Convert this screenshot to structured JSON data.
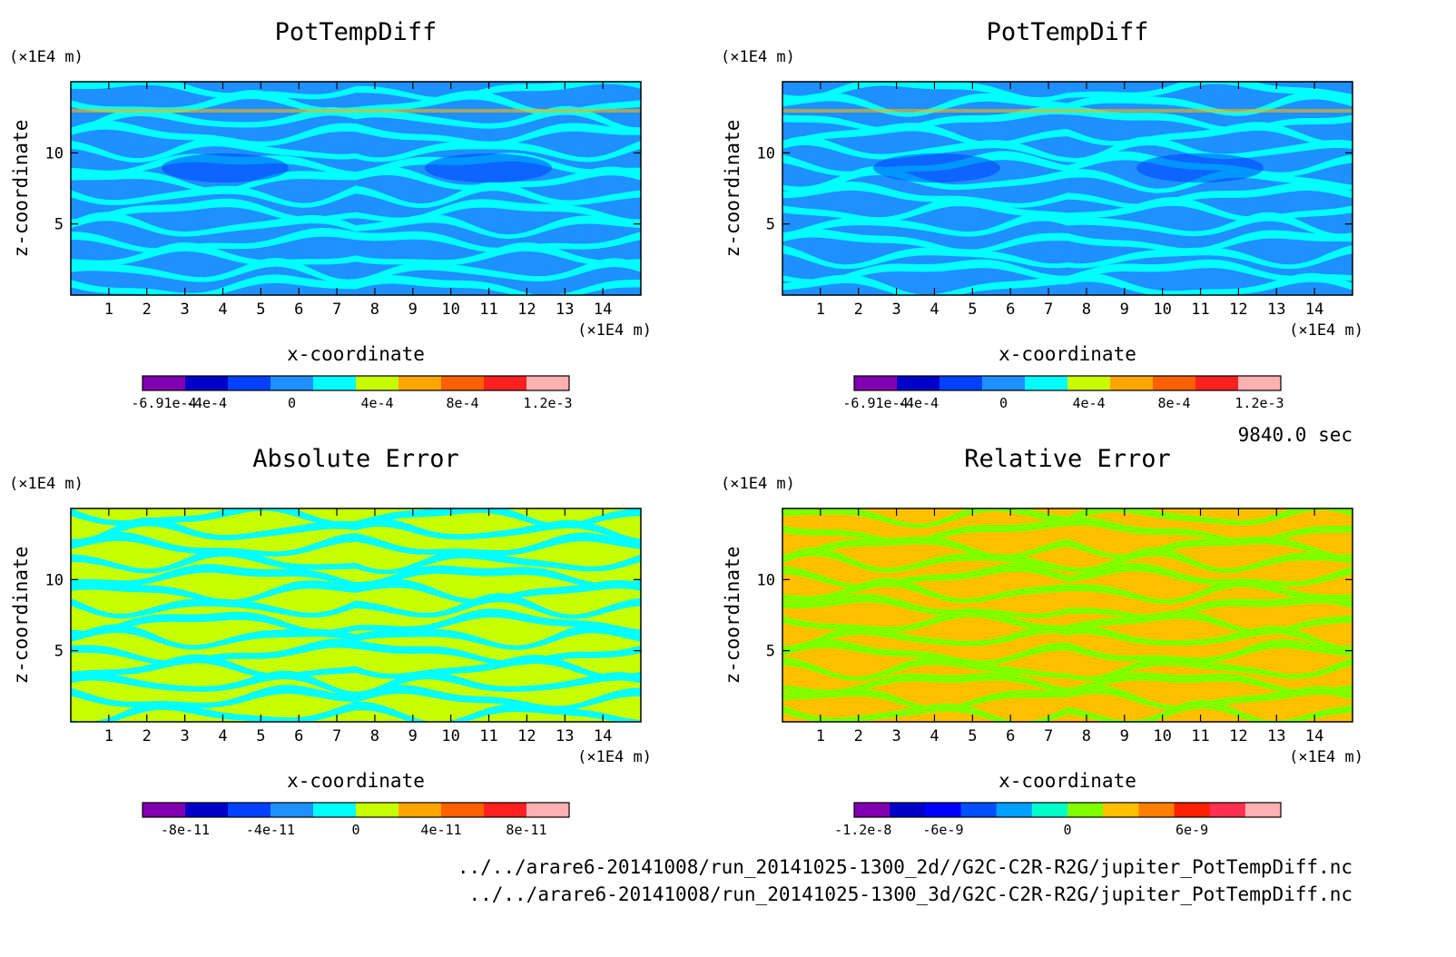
{
  "time_label": "9840.0 sec",
  "files": [
    "../../arare6-20141008/run_20141025-1300_2d//G2C-C2R-R2G/jupiter_PotTempDiff.nc",
    "../../arare6-20141008/run_20141025-1300_3d/G2C-C2R-R2G/jupiter_PotTempDiff.nc"
  ],
  "chart_data": [
    {
      "type": "heatmap",
      "title": "PotTempDiff",
      "xlabel": "x-coordinate",
      "ylabel": "z-coordinate",
      "x_unit": "(×1E4 m)",
      "y_unit": "(×1E4 m)",
      "xlim": [
        0,
        15
      ],
      "ylim": [
        0,
        15
      ],
      "x_ticks": [
        "1",
        "2",
        "3",
        "4",
        "5",
        "6",
        "7",
        "8",
        "9",
        "10",
        "11",
        "12",
        "13",
        "14"
      ],
      "y_ticks": [
        "5",
        "10"
      ],
      "colorbar": {
        "colors": [
          "#8000b0",
          "#0000c8",
          "#0040ff",
          "#1e90ff",
          "#00ffff",
          "#c8ff00",
          "#ffa500",
          "#ff6000",
          "#ff2020",
          "#ffb0b0"
        ],
        "label_positions": [
          0.5,
          1.5,
          3.5,
          5.5,
          7.5,
          9.5
        ],
        "labels": [
          "-6.91e-4",
          "-4e-4",
          "0",
          "4e-4",
          "8e-4",
          "1.2e-3"
        ]
      },
      "field_colors": [
        "#1e90ff",
        "#00ffff",
        "#0040ff"
      ]
    },
    {
      "type": "heatmap",
      "title": "PotTempDiff",
      "xlabel": "x-coordinate",
      "ylabel": "z-coordinate",
      "x_unit": "(×1E4 m)",
      "y_unit": "(×1E4 m)",
      "xlim": [
        0,
        15
      ],
      "ylim": [
        0,
        15
      ],
      "x_ticks": [
        "1",
        "2",
        "3",
        "4",
        "5",
        "6",
        "7",
        "8",
        "9",
        "10",
        "11",
        "12",
        "13",
        "14"
      ],
      "y_ticks": [
        "5",
        "10"
      ],
      "colorbar": {
        "colors": [
          "#8000b0",
          "#0000c8",
          "#0040ff",
          "#1e90ff",
          "#00ffff",
          "#c8ff00",
          "#ffa500",
          "#ff6000",
          "#ff2020",
          "#ffb0b0"
        ],
        "label_positions": [
          0.5,
          1.5,
          3.5,
          5.5,
          7.5,
          9.5
        ],
        "labels": [
          "-6.91e-4",
          "-4e-4",
          "0",
          "4e-4",
          "8e-4",
          "1.2e-3"
        ]
      },
      "field_colors": [
        "#1e90ff",
        "#00ffff",
        "#0040ff"
      ]
    },
    {
      "type": "heatmap",
      "title": "Absolute Error",
      "xlabel": "x-coordinate",
      "ylabel": "z-coordinate",
      "x_unit": "(×1E4 m)",
      "y_unit": "(×1E4 m)",
      "xlim": [
        0,
        15
      ],
      "ylim": [
        0,
        15
      ],
      "x_ticks": [
        "1",
        "2",
        "3",
        "4",
        "5",
        "6",
        "7",
        "8",
        "9",
        "10",
        "11",
        "12",
        "13",
        "14"
      ],
      "y_ticks": [
        "5",
        "10"
      ],
      "colorbar": {
        "colors": [
          "#8000b0",
          "#0000c8",
          "#0040ff",
          "#1e90ff",
          "#00ffff",
          "#c8ff00",
          "#ffa500",
          "#ff6000",
          "#ff2020",
          "#ffb0b0"
        ],
        "label_positions": [
          1,
          3,
          5,
          7,
          9
        ],
        "labels": [
          "-8e-11",
          "-4e-11",
          "0",
          "4e-11",
          "8e-11"
        ]
      },
      "field_colors": [
        "#c8ff00",
        "#00ffff"
      ]
    },
    {
      "type": "heatmap",
      "title": "Relative Error",
      "xlabel": "x-coordinate",
      "ylabel": "z-coordinate",
      "x_unit": "(×1E4 m)",
      "y_unit": "(×1E4 m)",
      "xlim": [
        0,
        15
      ],
      "ylim": [
        0,
        15
      ],
      "x_ticks": [
        "1",
        "2",
        "3",
        "4",
        "5",
        "6",
        "7",
        "8",
        "9",
        "10",
        "11",
        "12",
        "13",
        "14"
      ],
      "y_ticks": [
        "5",
        "10"
      ],
      "colorbar": {
        "colors": [
          "#8000b0",
          "#0000c8",
          "#0000ff",
          "#0050ff",
          "#00a0ff",
          "#00ffc8",
          "#80ff00",
          "#ffc000",
          "#ff8000",
          "#ff2000",
          "#ff3050",
          "#ffb0b0"
        ],
        "label_positions": [
          0.25,
          2.5,
          6.0,
          9.5
        ],
        "labels": [
          "-1.2e-8",
          "-6e-9",
          "0",
          "6e-9"
        ]
      },
      "field_colors": [
        "#ffc000",
        "#80ff00"
      ]
    }
  ]
}
